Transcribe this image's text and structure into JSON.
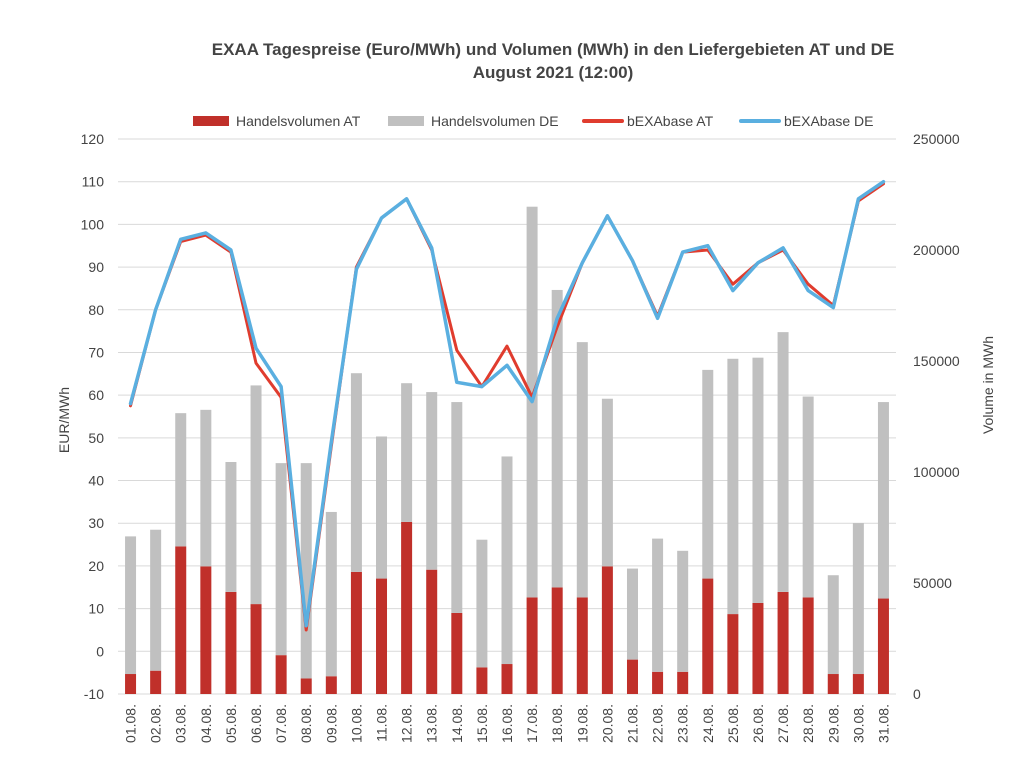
{
  "chart_data": {
    "type": "bar",
    "title": "EXAA Tagespreise (Euro/MWh) und Volumen (MWh) in den Liefergebieten AT und DE",
    "subtitle": "August 2021 (12:00)",
    "ylabel": "EUR/MWh",
    "y2label": "Volume in MWh",
    "ylim": [
      -10,
      120
    ],
    "y_ticks": [
      -10,
      0,
      10,
      20,
      30,
      40,
      50,
      60,
      70,
      80,
      90,
      100,
      110,
      120
    ],
    "y2lim": [
      0,
      250000
    ],
    "y2_ticks": [
      0,
      50000,
      100000,
      150000,
      200000,
      250000
    ],
    "grid": true,
    "legend_position": "top",
    "categories": [
      "01.08.",
      "02.08.",
      "03.08.",
      "04.08.",
      "05.08.",
      "06.08.",
      "07.08.",
      "08.08.",
      "09.08.",
      "10.08.",
      "11.08.",
      "12.08.",
      "13.08.",
      "14.08.",
      "15.08.",
      "16.08.",
      "17.08.",
      "18.08.",
      "19.08.",
      "20.08.",
      "21.08.",
      "22.08.",
      "23.08.",
      "24.08.",
      "25.08.",
      "26.08.",
      "27.08.",
      "28.08.",
      "29.08.",
      "30.08.",
      "31.08."
    ],
    "series": [
      {
        "name": "Handelsvolumen AT",
        "kind": "bar",
        "axis": "right",
        "color": "#c0302a",
        "values": [
          9000,
          10500,
          66500,
          57500,
          46000,
          40500,
          17500,
          7000,
          8000,
          55000,
          52000,
          77500,
          56000,
          36500,
          12000,
          13500,
          43500,
          48000,
          43500,
          57500,
          15500,
          10000,
          10000,
          52000,
          36000,
          41000,
          46000,
          43500,
          9000,
          9000,
          43000
        ]
      },
      {
        "name": "Handelsvolumen DE",
        "kind": "bar",
        "axis": "right",
        "color": "#c0c0c0",
        "values": [
          62000,
          63500,
          60000,
          70500,
          58500,
          98500,
          86500,
          97000,
          74000,
          89500,
          64000,
          62500,
          80000,
          95000,
          57500,
          93500,
          176000,
          134000,
          115000,
          75500,
          41000,
          60000,
          54500,
          94000,
          115000,
          110500,
          117000,
          90500,
          44500,
          68000,
          88500
        ]
      },
      {
        "name": "bEXAbase AT",
        "kind": "line",
        "axis": "left",
        "color": "#e03c2e",
        "values": [
          57.5,
          80,
          96,
          97.5,
          93.5,
          67.5,
          59.5,
          5,
          48,
          90,
          101.5,
          106,
          94,
          70.5,
          62,
          71.5,
          59.5,
          76,
          91,
          102,
          91.5,
          78.5,
          93.5,
          94,
          86,
          91,
          94,
          86,
          81,
          105.5,
          109.5
        ]
      },
      {
        "name": "bEXAbase DE",
        "kind": "line",
        "axis": "left",
        "color": "#5aafe0",
        "values": [
          58,
          80,
          96.5,
          98,
          94,
          71,
          62,
          6,
          49,
          89.5,
          101.5,
          106,
          94.5,
          63,
          62,
          67,
          58.5,
          78,
          91,
          102,
          91.5,
          78,
          93.5,
          95,
          84.5,
          91,
          94.5,
          84.5,
          80.5,
          106,
          110
        ]
      }
    ]
  }
}
